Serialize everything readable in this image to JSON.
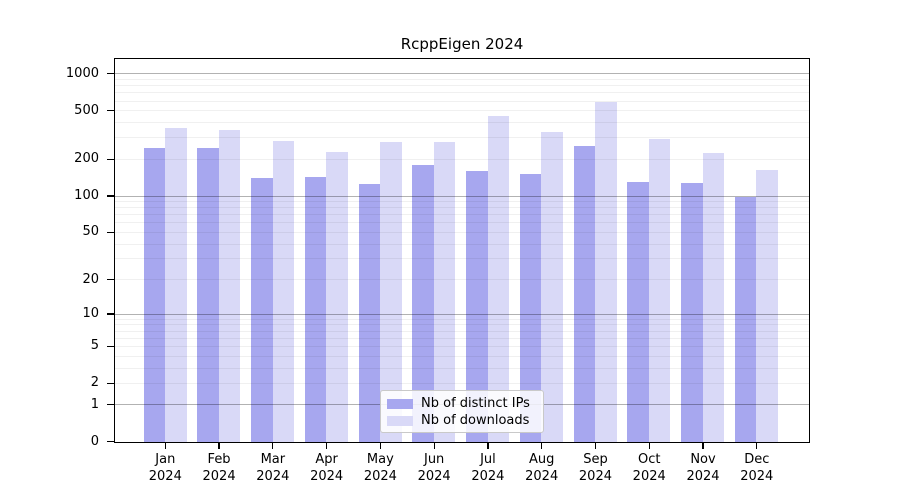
{
  "title": "RcppEigen 2024",
  "colors": {
    "bar_distinct_ips": "#a7a7ef",
    "bar_downloads": "#d9d9f7",
    "grid_major": "#b3b3b3",
    "grid_minor": "#f0f0f0",
    "axis_line": "#000000",
    "legend_border": "#c9c9c9"
  },
  "legend": {
    "items": [
      {
        "label": "Nb of distinct IPs"
      },
      {
        "label": "Nb of downloads"
      }
    ]
  },
  "y_axis": {
    "tick_labels": [
      "0",
      "1",
      "2",
      "5",
      "10",
      "20",
      "50",
      "100",
      "200",
      "500",
      "1000"
    ]
  },
  "x_axis": {
    "months": [
      "Jan",
      "Feb",
      "Mar",
      "Apr",
      "May",
      "Jun",
      "Jul",
      "Aug",
      "Sep",
      "Oct",
      "Nov",
      "Dec"
    ],
    "year": "2024"
  },
  "chart_data": {
    "type": "bar",
    "title": "RcppEigen 2024",
    "categories": [
      "Jan 2024",
      "Feb 2024",
      "Mar 2024",
      "Apr 2024",
      "May 2024",
      "Jun 2024",
      "Jul 2024",
      "Aug 2024",
      "Sep 2024",
      "Oct 2024",
      "Nov 2024",
      "Dec 2024"
    ],
    "series": [
      {
        "name": "Nb of distinct IPs",
        "color": "#a7a7ef",
        "values": [
          250,
          250,
          140,
          144,
          127,
          180,
          162,
          152,
          259,
          132,
          128,
          99
        ]
      },
      {
        "name": "Nb of downloads",
        "color": "#d9d9f7",
        "values": [
          364,
          348,
          281,
          232,
          280,
          280,
          452,
          338,
          587,
          296,
          226,
          164
        ]
      }
    ],
    "xlabel": "",
    "ylabel": "",
    "y_scale": "log1p",
    "ylim": [
      0,
      1310
    ],
    "y_ticks": [
      0,
      1,
      2,
      5,
      10,
      20,
      50,
      100,
      200,
      500,
      1000
    ],
    "major_gridlines": [
      1,
      10,
      100,
      1000
    ],
    "minor_gridlines": [
      2,
      3,
      4,
      5,
      6,
      7,
      8,
      9,
      20,
      30,
      40,
      50,
      60,
      70,
      80,
      90,
      200,
      300,
      400,
      500,
      600,
      700,
      800,
      900
    ],
    "grid": true,
    "legend_position": "lower center"
  }
}
